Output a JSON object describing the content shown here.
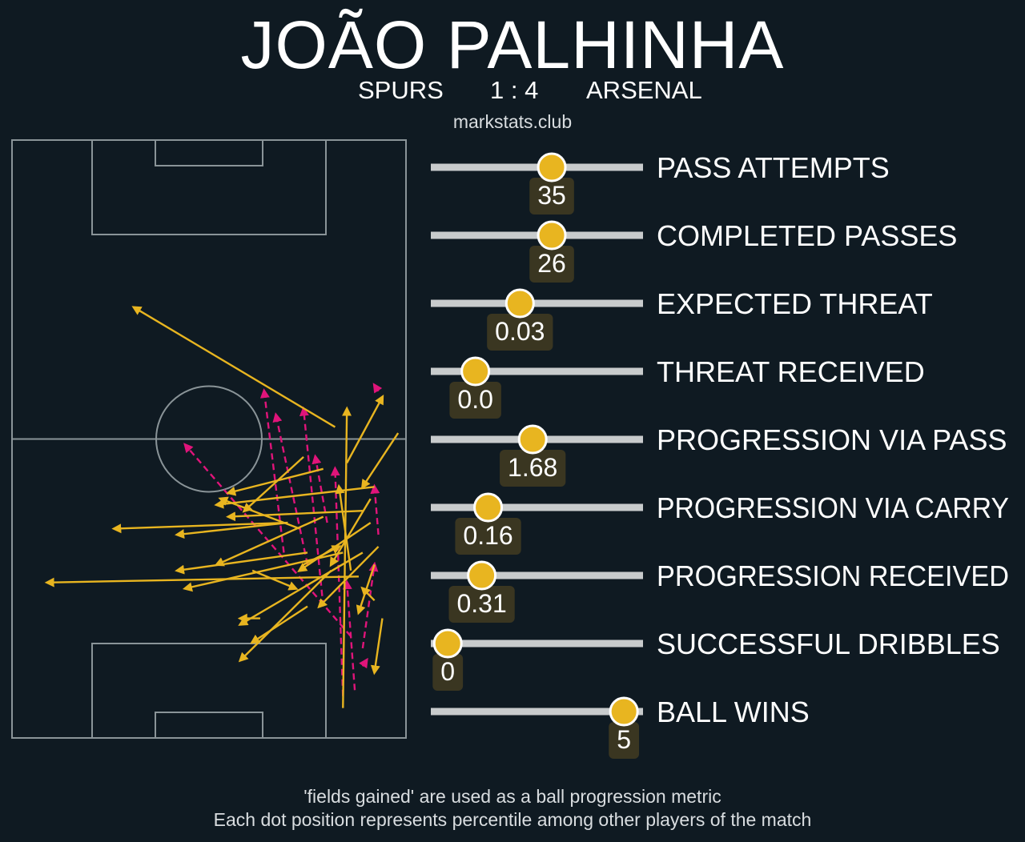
{
  "header": {
    "player_name": "JOÃO PALHINHA",
    "home_team": "SPURS",
    "score": "1 : 4",
    "away_team": "ARSENAL",
    "source": "markstats.club"
  },
  "footer": {
    "line1": "'fields gained' are used as a ball progression metric",
    "line2": "Each dot position represents percentile among other players of the match"
  },
  "colors": {
    "background": "#0f1a22",
    "pitch_lines": "#8a9498",
    "pass": "#e8b520",
    "carry": "#e0147a",
    "track": "#c8cbcc",
    "dot": "#e8b520",
    "value_box": "#3a3621"
  },
  "chart_data": [
    {
      "type": "pitch-map",
      "legend": [
        {
          "name": "pass",
          "style": "solid",
          "color": "#e8b520"
        },
        {
          "name": "carry",
          "style": "dashed",
          "color": "#e0147a"
        }
      ],
      "pitch": {
        "length": 100,
        "width": 100,
        "attacking_direction": "up"
      },
      "passes": [
        {
          "x1": 82,
          "y1": 48,
          "x2": 31,
          "y2": 28
        },
        {
          "x1": 84,
          "y1": 95,
          "x2": 85,
          "y2": 45
        },
        {
          "x1": 79,
          "y1": 55,
          "x2": 55,
          "y2": 59
        },
        {
          "x1": 73,
          "y1": 65,
          "x2": 53,
          "y2": 60
        },
        {
          "x1": 70,
          "y1": 64,
          "x2": 26,
          "y2": 65
        },
        {
          "x1": 75,
          "y1": 69,
          "x2": 42,
          "y2": 72
        },
        {
          "x1": 88,
          "y1": 73,
          "x2": 9,
          "y2": 74
        },
        {
          "x1": 84,
          "y1": 69,
          "x2": 44,
          "y2": 75
        },
        {
          "x1": 92,
          "y1": 58,
          "x2": 52,
          "y2": 61
        },
        {
          "x1": 89,
          "y1": 62,
          "x2": 55,
          "y2": 63
        },
        {
          "x1": 91,
          "y1": 64,
          "x2": 73,
          "y2": 72
        },
        {
          "x1": 93,
          "y1": 68,
          "x2": 78,
          "y2": 78
        },
        {
          "x1": 92,
          "y1": 71,
          "x2": 88,
          "y2": 79
        },
        {
          "x1": 98,
          "y1": 49,
          "x2": 89,
          "y2": 58
        },
        {
          "x1": 85,
          "y1": 54,
          "x2": 94,
          "y2": 43
        },
        {
          "x1": 81,
          "y1": 72,
          "x2": 58,
          "y2": 87
        },
        {
          "x1": 75,
          "y1": 78,
          "x2": 61,
          "y2": 84
        },
        {
          "x1": 61,
          "y1": 72,
          "x2": 72,
          "y2": 75
        },
        {
          "x1": 63,
          "y1": 80,
          "x2": 58,
          "y2": 80
        },
        {
          "x1": 70,
          "y1": 64,
          "x2": 42,
          "y2": 66
        },
        {
          "x1": 94,
          "y1": 80,
          "x2": 92,
          "y2": 89
        },
        {
          "x1": 91,
          "y1": 60,
          "x2": 81,
          "y2": 71
        },
        {
          "x1": 92,
          "y1": 77,
          "x2": 89,
          "y2": 75
        },
        {
          "x1": 74,
          "y1": 53,
          "x2": 59,
          "y2": 62
        },
        {
          "x1": 79,
          "y1": 63,
          "x2": 52,
          "y2": 71
        },
        {
          "x1": 89,
          "y1": 69,
          "x2": 58,
          "y2": 81
        },
        {
          "x1": 74,
          "y1": 71,
          "x2": 83,
          "y2": 68
        },
        {
          "x1": 86,
          "y1": 72,
          "x2": 83,
          "y2": 58
        }
      ],
      "carries": [
        {
          "x1": 69,
          "y1": 69,
          "x2": 64,
          "y2": 42
        },
        {
          "x1": 79,
          "y1": 78,
          "x2": 74,
          "y2": 45
        },
        {
          "x1": 84,
          "y1": 93,
          "x2": 82,
          "y2": 55
        },
        {
          "x1": 87,
          "y1": 92,
          "x2": 85,
          "y2": 74
        },
        {
          "x1": 89,
          "y1": 85,
          "x2": 92,
          "y2": 71
        },
        {
          "x1": 86,
          "y1": 83,
          "x2": 44,
          "y2": 51
        },
        {
          "x1": 80,
          "y1": 64,
          "x2": 77,
          "y2": 53
        },
        {
          "x1": 75,
          "y1": 71,
          "x2": 67,
          "y2": 46
        },
        {
          "x1": 93,
          "y1": 66,
          "x2": 92,
          "y2": 58
        },
        {
          "x1": 93,
          "y1": 42,
          "x2": 92,
          "y2": 41
        },
        {
          "x1": 89,
          "y1": 88,
          "x2": 90,
          "y2": 87
        }
      ]
    },
    {
      "type": "percentile-dots",
      "xlim": [
        0,
        100
      ],
      "metrics": [
        {
          "label": "PASS ATTEMPTS",
          "value": "35",
          "percentile": 57
        },
        {
          "label": "COMPLETED PASSES",
          "value": "26",
          "percentile": 57
        },
        {
          "label": "EXPECTED THREAT",
          "value": "0.03",
          "percentile": 42
        },
        {
          "label": "THREAT RECEIVED",
          "value": "0.0",
          "percentile": 21
        },
        {
          "label": "PROGRESSION VIA PASS",
          "value": "1.68",
          "percentile": 48
        },
        {
          "label": "PROGRESSION VIA CARRY",
          "value": "0.16",
          "percentile": 27
        },
        {
          "label": "PROGRESSION RECEIVED",
          "value": "0.31",
          "percentile": 24
        },
        {
          "label": "SUCCESSFUL DRIBBLES",
          "value": "0",
          "percentile": 8
        },
        {
          "label": "BALL WINS",
          "value": "5",
          "percentile": 91
        }
      ]
    }
  ]
}
